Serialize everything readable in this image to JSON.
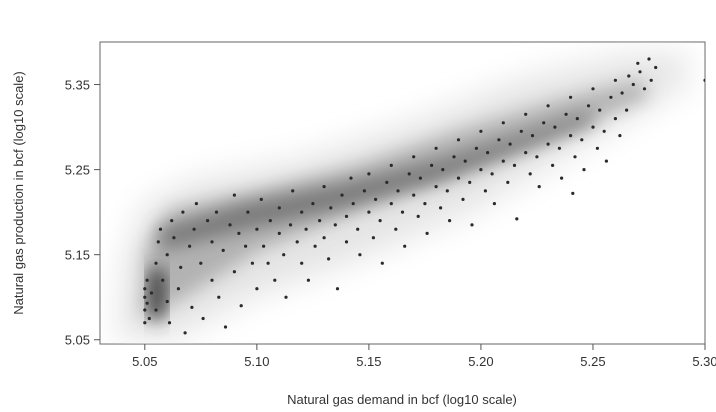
{
  "chart_data": {
    "type": "scatter",
    "title": "",
    "xlabel": "Natural gas demand in bcf (log10 scale)",
    "ylabel": "Natural gas production in bcf (log10 scale)",
    "xlim": [
      5.03,
      5.3
    ],
    "ylim": [
      5.045,
      5.4
    ],
    "xticks": [
      5.05,
      5.1,
      5.15,
      5.2,
      5.25,
      5.3
    ],
    "xtick_labels": [
      "5.05",
      "5.10",
      "5.15",
      "5.20",
      "5.25",
      "5.30"
    ],
    "yticks": [
      5.05,
      5.15,
      5.25,
      5.35
    ],
    "ytick_labels": [
      "5.05",
      "5.15",
      "5.25",
      "5.35"
    ],
    "grid": false,
    "legend": "none",
    "colors": {
      "points": "#2a2a2a",
      "density_dark": "#3c3c3c",
      "background": "#e2e2e2",
      "axes": "#555555"
    },
    "points": [
      [
        5.05,
        5.07
      ],
      [
        5.05,
        5.085
      ],
      [
        5.05,
        5.1
      ],
      [
        5.05,
        5.11
      ],
      [
        5.051,
        5.093
      ],
      [
        5.051,
        5.12
      ],
      [
        5.052,
        5.075
      ],
      [
        5.053,
        5.105
      ],
      [
        5.055,
        5.14
      ],
      [
        5.055,
        5.085
      ],
      [
        5.056,
        5.165
      ],
      [
        5.057,
        5.18
      ],
      [
        5.058,
        5.12
      ],
      [
        5.06,
        5.095
      ],
      [
        5.06,
        5.15
      ],
      [
        5.061,
        5.07
      ],
      [
        5.062,
        5.19
      ],
      [
        5.063,
        5.17
      ],
      [
        5.065,
        5.11
      ],
      [
        5.066,
        5.135
      ],
      [
        5.067,
        5.2
      ],
      [
        5.068,
        5.058
      ],
      [
        5.07,
        5.16
      ],
      [
        5.071,
        5.088
      ],
      [
        5.072,
        5.18
      ],
      [
        5.073,
        5.21
      ],
      [
        5.075,
        5.14
      ],
      [
        5.076,
        5.075
      ],
      [
        5.078,
        5.19
      ],
      [
        5.08,
        5.12
      ],
      [
        5.08,
        5.165
      ],
      [
        5.082,
        5.2
      ],
      [
        5.083,
        5.1
      ],
      [
        5.085,
        5.155
      ],
      [
        5.086,
        5.065
      ],
      [
        5.088,
        5.185
      ],
      [
        5.09,
        5.22
      ],
      [
        5.09,
        5.13
      ],
      [
        5.092,
        5.175
      ],
      [
        5.093,
        5.09
      ],
      [
        5.095,
        5.16
      ],
      [
        5.096,
        5.2
      ],
      [
        5.098,
        5.14
      ],
      [
        5.1,
        5.18
      ],
      [
        5.1,
        5.11
      ],
      [
        5.102,
        5.215
      ],
      [
        5.103,
        5.16
      ],
      [
        5.105,
        5.14
      ],
      [
        5.106,
        5.19
      ],
      [
        5.108,
        5.12
      ],
      [
        5.11,
        5.175
      ],
      [
        5.11,
        5.205
      ],
      [
        5.112,
        5.15
      ],
      [
        5.113,
        5.1
      ],
      [
        5.115,
        5.185
      ],
      [
        5.116,
        5.225
      ],
      [
        5.118,
        5.165
      ],
      [
        5.12,
        5.14
      ],
      [
        5.12,
        5.2
      ],
      [
        5.122,
        5.18
      ],
      [
        5.123,
        5.12
      ],
      [
        5.125,
        5.21
      ],
      [
        5.126,
        5.16
      ],
      [
        5.128,
        5.19
      ],
      [
        5.13,
        5.23
      ],
      [
        5.13,
        5.17
      ],
      [
        5.132,
        5.145
      ],
      [
        5.133,
        5.205
      ],
      [
        5.135,
        5.185
      ],
      [
        5.136,
        5.11
      ],
      [
        5.138,
        5.22
      ],
      [
        5.14,
        5.195
      ],
      [
        5.14,
        5.165
      ],
      [
        5.142,
        5.24
      ],
      [
        5.143,
        5.21
      ],
      [
        5.145,
        5.18
      ],
      [
        5.146,
        5.15
      ],
      [
        5.148,
        5.225
      ],
      [
        5.15,
        5.2
      ],
      [
        5.15,
        5.245
      ],
      [
        5.152,
        5.17
      ],
      [
        5.153,
        5.215
      ],
      [
        5.155,
        5.19
      ],
      [
        5.156,
        5.14
      ],
      [
        5.158,
        5.235
      ],
      [
        5.16,
        5.21
      ],
      [
        5.16,
        5.255
      ],
      [
        5.162,
        5.18
      ],
      [
        5.163,
        5.225
      ],
      [
        5.165,
        5.2
      ],
      [
        5.166,
        5.16
      ],
      [
        5.168,
        5.245
      ],
      [
        5.17,
        5.22
      ],
      [
        5.17,
        5.265
      ],
      [
        5.172,
        5.195
      ],
      [
        5.173,
        5.24
      ],
      [
        5.175,
        5.21
      ],
      [
        5.176,
        5.175
      ],
      [
        5.178,
        5.255
      ],
      [
        5.18,
        5.23
      ],
      [
        5.18,
        5.275
      ],
      [
        5.182,
        5.205
      ],
      [
        5.183,
        5.25
      ],
      [
        5.185,
        5.225
      ],
      [
        5.186,
        5.19
      ],
      [
        5.188,
        5.265
      ],
      [
        5.19,
        5.24
      ],
      [
        5.19,
        5.285
      ],
      [
        5.192,
        5.215
      ],
      [
        5.193,
        5.26
      ],
      [
        5.195,
        5.235
      ],
      [
        5.196,
        5.185
      ],
      [
        5.198,
        5.275
      ],
      [
        5.2,
        5.25
      ],
      [
        5.2,
        5.295
      ],
      [
        5.202,
        5.225
      ],
      [
        5.203,
        5.27
      ],
      [
        5.205,
        5.245
      ],
      [
        5.206,
        5.21
      ],
      [
        5.208,
        5.285
      ],
      [
        5.21,
        5.26
      ],
      [
        5.21,
        5.305
      ],
      [
        5.212,
        5.235
      ],
      [
        5.213,
        5.28
      ],
      [
        5.215,
        5.255
      ],
      [
        5.216,
        5.192
      ],
      [
        5.218,
        5.295
      ],
      [
        5.22,
        5.27
      ],
      [
        5.22,
        5.315
      ],
      [
        5.222,
        5.245
      ],
      [
        5.223,
        5.29
      ],
      [
        5.225,
        5.265
      ],
      [
        5.226,
        5.23
      ],
      [
        5.228,
        5.305
      ],
      [
        5.23,
        5.28
      ],
      [
        5.23,
        5.325
      ],
      [
        5.232,
        5.255
      ],
      [
        5.233,
        5.3
      ],
      [
        5.235,
        5.275
      ],
      [
        5.236,
        5.24
      ],
      [
        5.238,
        5.315
      ],
      [
        5.24,
        5.29
      ],
      [
        5.24,
        5.335
      ],
      [
        5.241,
        5.222
      ],
      [
        5.242,
        5.265
      ],
      [
        5.243,
        5.31
      ],
      [
        5.245,
        5.285
      ],
      [
        5.246,
        5.25
      ],
      [
        5.248,
        5.325
      ],
      [
        5.25,
        5.3
      ],
      [
        5.25,
        5.345
      ],
      [
        5.252,
        5.275
      ],
      [
        5.253,
        5.32
      ],
      [
        5.255,
        5.295
      ],
      [
        5.256,
        5.26
      ],
      [
        5.258,
        5.335
      ],
      [
        5.26,
        5.31
      ],
      [
        5.26,
        5.355
      ],
      [
        5.262,
        5.29
      ],
      [
        5.263,
        5.34
      ],
      [
        5.265,
        5.32
      ],
      [
        5.266,
        5.36
      ],
      [
        5.268,
        5.35
      ],
      [
        5.27,
        5.375
      ],
      [
        5.271,
        5.365
      ],
      [
        5.273,
        5.345
      ],
      [
        5.275,
        5.38
      ],
      [
        5.276,
        5.355
      ],
      [
        5.278,
        5.37
      ],
      [
        5.3,
        5.355
      ]
    ]
  }
}
